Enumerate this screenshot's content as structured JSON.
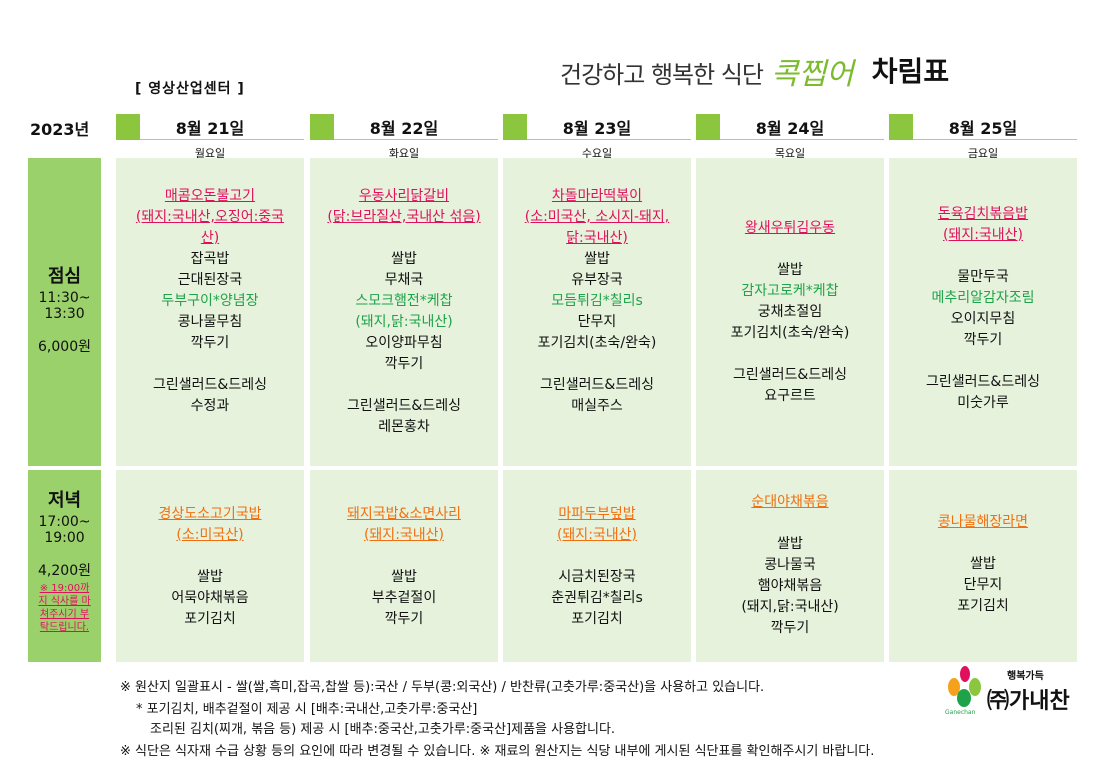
{
  "title": {
    "sub": "건강하고 행복한 식단",
    "brand": "콕찝어",
    "main": "차림표"
  },
  "center": "[ 영상산업센터 ]",
  "year": "2023년",
  "days": [
    {
      "date": "8월 21일",
      "weekday": "월요일"
    },
    {
      "date": "8월 22일",
      "weekday": "화요일"
    },
    {
      "date": "8월 23일",
      "weekday": "수요일"
    },
    {
      "date": "8월 24일",
      "weekday": "목요일"
    },
    {
      "date": "8월 25일",
      "weekday": "금요일"
    }
  ],
  "lunch": {
    "label": "점심",
    "time1": "11:30~",
    "time2": "13:30",
    "price": "6,000원",
    "menus": [
      {
        "main": [
          "매콤오돈불고기",
          "(돼지:국내산,오징어:중국",
          "산)"
        ],
        "items": [
          [
            "잡곡밥",
            "b"
          ],
          [
            "근대된장국",
            "b"
          ],
          [
            "두부구이*양념장",
            "g"
          ],
          [
            "콩나물무침",
            "b"
          ],
          [
            "깍두기",
            "b"
          ],
          [
            "",
            ""
          ],
          [
            "그린샐러드&드레싱",
            "b"
          ],
          [
            "수정과",
            "b"
          ]
        ]
      },
      {
        "main": [
          "우동사리닭갈비",
          "(닭:브라질산,국내산 섞음)"
        ],
        "items": [
          [
            "",
            ""
          ],
          [
            "쌀밥",
            "b"
          ],
          [
            "무채국",
            "b"
          ],
          [
            "스모크햄전*케찹",
            "g"
          ],
          [
            "(돼지,닭:국내산)",
            "g"
          ],
          [
            "오이양파무침",
            "b"
          ],
          [
            "깍두기",
            "b"
          ],
          [
            "",
            ""
          ],
          [
            "그린샐러드&드레싱",
            "b"
          ],
          [
            "레몬홍차",
            "b"
          ]
        ]
      },
      {
        "main": [
          "차돌마라떡볶이",
          "(소:미국산, 소시지-돼지,",
          "닭:국내산)"
        ],
        "items": [
          [
            "쌀밥",
            "b"
          ],
          [
            "유부장국",
            "b"
          ],
          [
            "모듬튀김*칠리s",
            "g"
          ],
          [
            "단무지",
            "b"
          ],
          [
            "포기김치(초숙/완숙)",
            "b"
          ],
          [
            "",
            ""
          ],
          [
            "그린샐러드&드레싱",
            "b"
          ],
          [
            "매실주스",
            "b"
          ]
        ]
      },
      {
        "main": [
          "왕새우튀김우동"
        ],
        "items": [
          [
            "",
            ""
          ],
          [
            "쌀밥",
            "b"
          ],
          [
            "감자고로케*케찹",
            "g"
          ],
          [
            "궁채초절임",
            "b"
          ],
          [
            "포기김치(초숙/완숙)",
            "b"
          ],
          [
            "",
            ""
          ],
          [
            "그린샐러드&드레싱",
            "b"
          ],
          [
            "요구르트",
            "b"
          ]
        ]
      },
      {
        "main": [
          "돈육김치볶음밥",
          "(돼지:국내산)"
        ],
        "items": [
          [
            "",
            ""
          ],
          [
            "물만두국",
            "b"
          ],
          [
            "메추리알감자조림",
            "g"
          ],
          [
            "오이지무침",
            "b"
          ],
          [
            "깍두기",
            "b"
          ],
          [
            "",
            ""
          ],
          [
            "그린샐러드&드레싱",
            "b"
          ],
          [
            "미숫가루",
            "b"
          ]
        ]
      }
    ]
  },
  "dinner": {
    "label": "저녁",
    "time1": "17:00~",
    "time2": "19:00",
    "price": "4,200원",
    "note": [
      "※ 19:00까",
      "지 식사를 마",
      "쳐주시기 부",
      "탁드립니다."
    ],
    "menus": [
      {
        "main": [
          "경상도소고기국밥",
          "(소:미국산)"
        ],
        "items": [
          [
            "",
            ""
          ],
          [
            "쌀밥",
            "b"
          ],
          [
            "어묵야채볶음",
            "b"
          ],
          [
            "포기김치",
            "b"
          ]
        ]
      },
      {
        "main": [
          "돼지국밥&소면사리",
          "(돼지:국내산)"
        ],
        "items": [
          [
            "",
            ""
          ],
          [
            "쌀밥",
            "b"
          ],
          [
            "부추겉절이",
            "b"
          ],
          [
            "깍두기",
            "b"
          ]
        ]
      },
      {
        "main": [
          "마파두부덮밥",
          "(돼지:국내산)"
        ],
        "items": [
          [
            "",
            ""
          ],
          [
            "시금치된장국",
            "b"
          ],
          [
            "춘권튀김*칠리s",
            "b"
          ],
          [
            "포기김치",
            "b"
          ]
        ]
      },
      {
        "main": [
          "순대야채볶음"
        ],
        "items": [
          [
            "",
            ""
          ],
          [
            "쌀밥",
            "b"
          ],
          [
            "콩나물국",
            "b"
          ],
          [
            "햄야채볶음",
            "b"
          ],
          [
            "(돼지,닭:국내산)",
            "b"
          ],
          [
            "깍두기",
            "b"
          ]
        ]
      },
      {
        "main": [
          "콩나물해장라면"
        ],
        "items": [
          [
            "",
            ""
          ],
          [
            "쌀밥",
            "b"
          ],
          [
            "단무지",
            "b"
          ],
          [
            "포기김치",
            "b"
          ]
        ]
      }
    ]
  },
  "footer": [
    "※ 원산지 일괄표시 - 쌀(쌀,흑미,잡곡,찹쌀 등):국산 / 두부(콩:외국산) / 반찬류(고춧가루:중국산)을 사용하고 있습니다.",
    "* 포기김치, 배추겉절이 제공 시 [배추:국내산,고춧가루:중국산]",
    "조리된 김치(찌개, 볶음 등) 제공 시  [배추:중국산,고춧가루:중국산]제품을 사용합니다.",
    "※ 식단은 식자재 수급 상황 등의 요인에 따라 변경될 수 있습니다. ※ 재료의 원산지는 식당 내부에 게시된 식단표를 확인해주시기 바랍니다."
  ],
  "logo": {
    "slogan": "행복가득",
    "company": "㈜가내찬",
    "english": "Ganechan"
  }
}
